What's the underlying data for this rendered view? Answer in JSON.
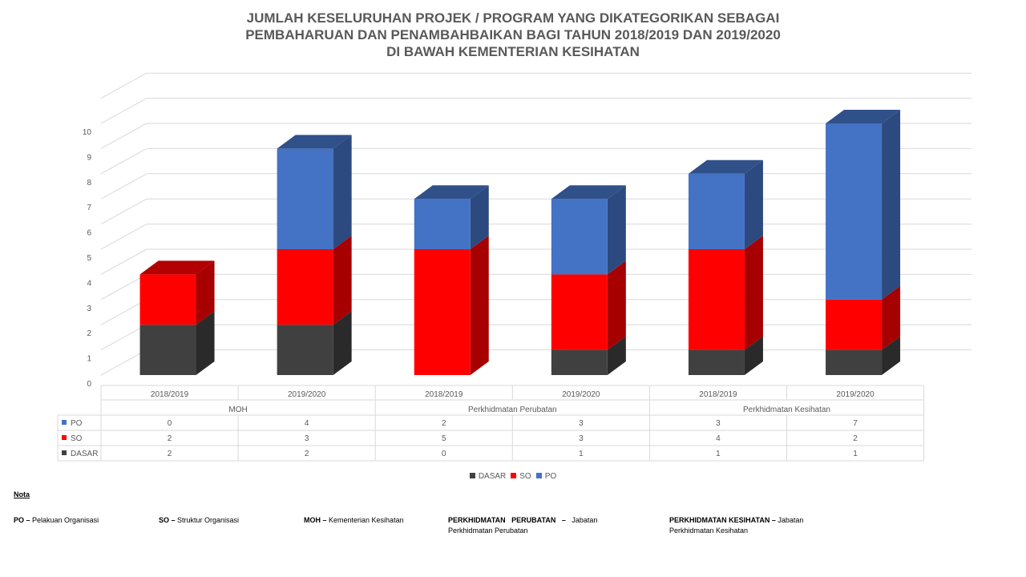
{
  "colors": {
    "DASAR": "#404040",
    "SO": "#ff0000",
    "PO": "#4472c4"
  },
  "chart_data": {
    "type": "bar",
    "stacked": true,
    "three_d": true,
    "title_lines": [
      "JUMLAH KESELURUHAN PROJEK / PROGRAM YANG DIKATEGORIKAN SEBAGAI",
      "PEMBAHARUAN DAN PENAMBAHBAIKAN BAGI TAHUN 2018/2019 DAN 2019/2020",
      "DI BAWAH KEMENTERIAN KESIHATAN"
    ],
    "groups": [
      "MOH",
      "Perkhidmatan Perubatan",
      "Perkhidmatan Kesihatan"
    ],
    "categories": [
      "2018/2019",
      "2019/2020",
      "2018/2019",
      "2019/2020",
      "2018/2019",
      "2019/2020"
    ],
    "series": [
      {
        "name": "DASAR",
        "values": [
          2,
          2,
          0,
          1,
          1,
          1
        ]
      },
      {
        "name": "SO",
        "values": [
          2,
          3,
          5,
          3,
          4,
          2
        ]
      },
      {
        "name": "PO",
        "values": [
          0,
          4,
          2,
          3,
          3,
          7
        ]
      }
    ],
    "table_row_order": [
      "PO",
      "SO",
      "DASAR"
    ],
    "y_ticks": [
      "0",
      "1",
      "2",
      "3",
      "4",
      "5",
      "6",
      "7",
      "8",
      "9",
      "10"
    ],
    "ylim": [
      0,
      11
    ],
    "grid": true,
    "legend_position": "bottom",
    "legend": [
      "DASAR",
      "SO",
      "PO"
    ]
  },
  "notes": {
    "heading": "Nota",
    "items": [
      {
        "abbr": "PO",
        "sep": " – ",
        "text": "Pelakuan Organisasi"
      },
      {
        "abbr": "SO",
        "sep": " – ",
        "text": "Struktur Organisasi"
      },
      {
        "abbr": "MOH",
        "sep": " – ",
        "text": "Kementerian Kesihatan"
      },
      {
        "abbr": "PERKHIDMATAN   PERUBATAN",
        "sep": "   –   ",
        "text": "Jabatan Perkhidmatan Perubatan"
      },
      {
        "abbr": "PERKHIDMATAN KESIHATAN",
        "sep": " – ",
        "text": "Jabatan Perkhidmatan Kesihatan"
      }
    ]
  }
}
